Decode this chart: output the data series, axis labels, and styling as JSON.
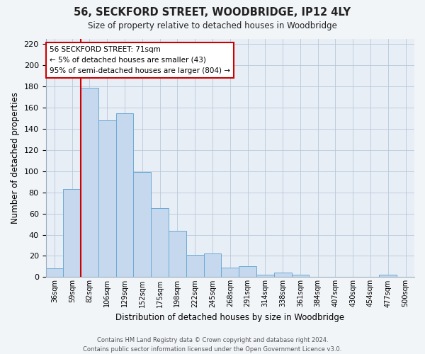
{
  "title": "56, SECKFORD STREET, WOODBRIDGE, IP12 4LY",
  "subtitle": "Size of property relative to detached houses in Woodbridge",
  "xlabel": "Distribution of detached houses by size in Woodbridge",
  "ylabel": "Number of detached properties",
  "bar_labels": [
    "36sqm",
    "59sqm",
    "82sqm",
    "106sqm",
    "129sqm",
    "152sqm",
    "175sqm",
    "198sqm",
    "222sqm",
    "245sqm",
    "268sqm",
    "291sqm",
    "314sqm",
    "338sqm",
    "361sqm",
    "384sqm",
    "407sqm",
    "430sqm",
    "454sqm",
    "477sqm",
    "500sqm"
  ],
  "bar_values": [
    8,
    83,
    179,
    148,
    155,
    99,
    65,
    44,
    21,
    22,
    9,
    10,
    2,
    4,
    2,
    0,
    0,
    0,
    0,
    2,
    0
  ],
  "bar_color": "#c5d8ee",
  "bar_edgecolor": "#6aaad4",
  "vline_color": "#cc0000",
  "annotation_title": "56 SECKFORD STREET: 71sqm",
  "annotation_line1": "← 5% of detached houses are smaller (43)",
  "annotation_line2": "95% of semi-detached houses are larger (804) →",
  "annotation_box_edgecolor": "#cc0000",
  "ylim": [
    0,
    225
  ],
  "yticks": [
    0,
    20,
    40,
    60,
    80,
    100,
    120,
    140,
    160,
    180,
    200,
    220
  ],
  "footer_line1": "Contains HM Land Registry data © Crown copyright and database right 2024.",
  "footer_line2": "Contains public sector information licensed under the Open Government Licence v3.0.",
  "bg_color": "#f2f5f8",
  "plot_bg_color": "#e8eef5"
}
